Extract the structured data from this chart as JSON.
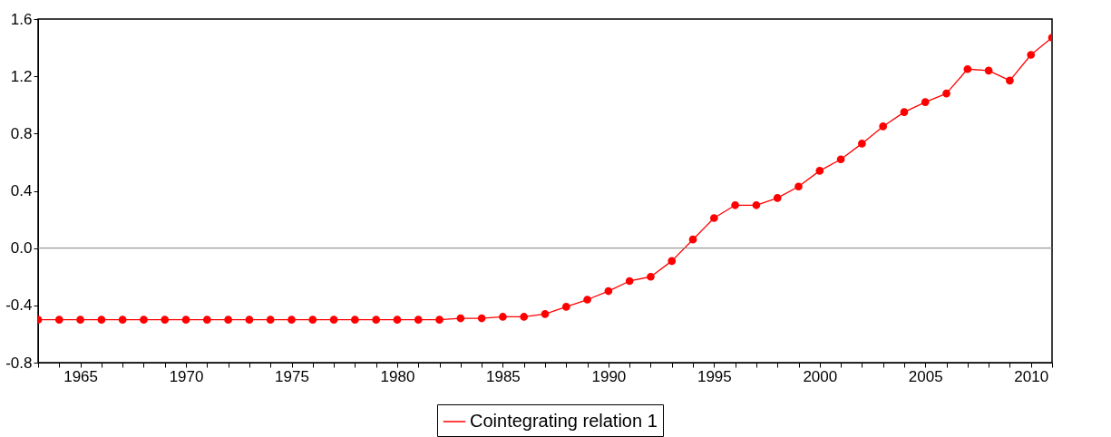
{
  "chart_data": {
    "type": "line",
    "x": [
      1963,
      1964,
      1965,
      1966,
      1967,
      1968,
      1969,
      1970,
      1971,
      1972,
      1973,
      1974,
      1975,
      1976,
      1977,
      1978,
      1979,
      1980,
      1981,
      1982,
      1983,
      1984,
      1985,
      1986,
      1987,
      1988,
      1989,
      1990,
      1991,
      1992,
      1993,
      1994,
      1995,
      1996,
      1997,
      1998,
      1999,
      2000,
      2001,
      2002,
      2003,
      2004,
      2005,
      2006,
      2007,
      2008,
      2009,
      2010,
      2011
    ],
    "series": [
      {
        "name": "Cointegrating relation 1",
        "color": "#ff0000",
        "values": [
          -0.5,
          -0.5,
          -0.5,
          -0.5,
          -0.5,
          -0.5,
          -0.5,
          -0.5,
          -0.5,
          -0.5,
          -0.5,
          -0.5,
          -0.5,
          -0.5,
          -0.5,
          -0.5,
          -0.5,
          -0.5,
          -0.5,
          -0.5,
          -0.49,
          -0.49,
          -0.48,
          -0.48,
          -0.46,
          -0.41,
          -0.36,
          -0.3,
          -0.23,
          -0.2,
          -0.09,
          0.06,
          0.21,
          0.3,
          0.3,
          0.35,
          0.43,
          0.54,
          0.62,
          0.73,
          0.85,
          0.95,
          1.02,
          1.08,
          1.25,
          1.24,
          1.17,
          1.35,
          1.47
        ]
      }
    ],
    "xlim": [
      1963,
      2011
    ],
    "xticks": [
      {
        "value": 1963,
        "label": null
      },
      {
        "value": 1964,
        "label": null
      },
      1965,
      {
        "value": 1966,
        "label": null
      },
      {
        "value": 1967,
        "label": null
      },
      {
        "value": 1968,
        "label": null
      },
      {
        "value": 1969,
        "label": null
      },
      1970,
      {
        "value": 1971,
        "label": null
      },
      {
        "value": 1972,
        "label": null
      },
      {
        "value": 1973,
        "label": null
      },
      {
        "value": 1974,
        "label": null
      },
      1975,
      {
        "value": 1976,
        "label": null
      },
      {
        "value": 1977,
        "label": null
      },
      {
        "value": 1978,
        "label": null
      },
      {
        "value": 1979,
        "label": null
      },
      1980,
      {
        "value": 1981,
        "label": null
      },
      {
        "value": 1982,
        "label": null
      },
      {
        "value": 1983,
        "label": null
      },
      {
        "value": 1984,
        "label": null
      },
      1985,
      {
        "value": 1986,
        "label": null
      },
      {
        "value": 1987,
        "label": null
      },
      {
        "value": 1988,
        "label": null
      },
      {
        "value": 1989,
        "label": null
      },
      1990,
      {
        "value": 1991,
        "label": null
      },
      {
        "value": 1992,
        "label": null
      },
      {
        "value": 1993,
        "label": null
      },
      {
        "value": 1994,
        "label": null
      },
      1995,
      {
        "value": 1996,
        "label": null
      },
      {
        "value": 1997,
        "label": null
      },
      {
        "value": 1998,
        "label": null
      },
      {
        "value": 1999,
        "label": null
      },
      2000,
      {
        "value": 2001,
        "label": null
      },
      {
        "value": 2002,
        "label": null
      },
      {
        "value": 2003,
        "label": null
      },
      {
        "value": 2004,
        "label": null
      },
      2005,
      {
        "value": 2006,
        "label": null
      },
      {
        "value": 2007,
        "label": null
      },
      {
        "value": 2008,
        "label": null
      },
      {
        "value": 2009,
        "label": null
      },
      2010,
      {
        "value": 2011,
        "label": null
      }
    ],
    "ylim": [
      -0.8,
      1.6
    ],
    "yticks": [
      {
        "value": -0.8,
        "label": "-0.8"
      },
      {
        "value": -0.4,
        "label": "-0.4"
      },
      {
        "value": 0,
        "label": "0.0"
      },
      {
        "value": 0.4,
        "label": "0.4"
      },
      {
        "value": 0.8,
        "label": "0.8"
      },
      {
        "value": 1.2,
        "label": "1.2"
      },
      {
        "value": 1.6,
        "label": "1.6"
      }
    ],
    "ref_lines": [
      {
        "axis": "y",
        "value": 0,
        "color": "#808080"
      }
    ],
    "grid": false,
    "legend": "bottom",
    "marker": "circle",
    "line_style": "solid"
  }
}
